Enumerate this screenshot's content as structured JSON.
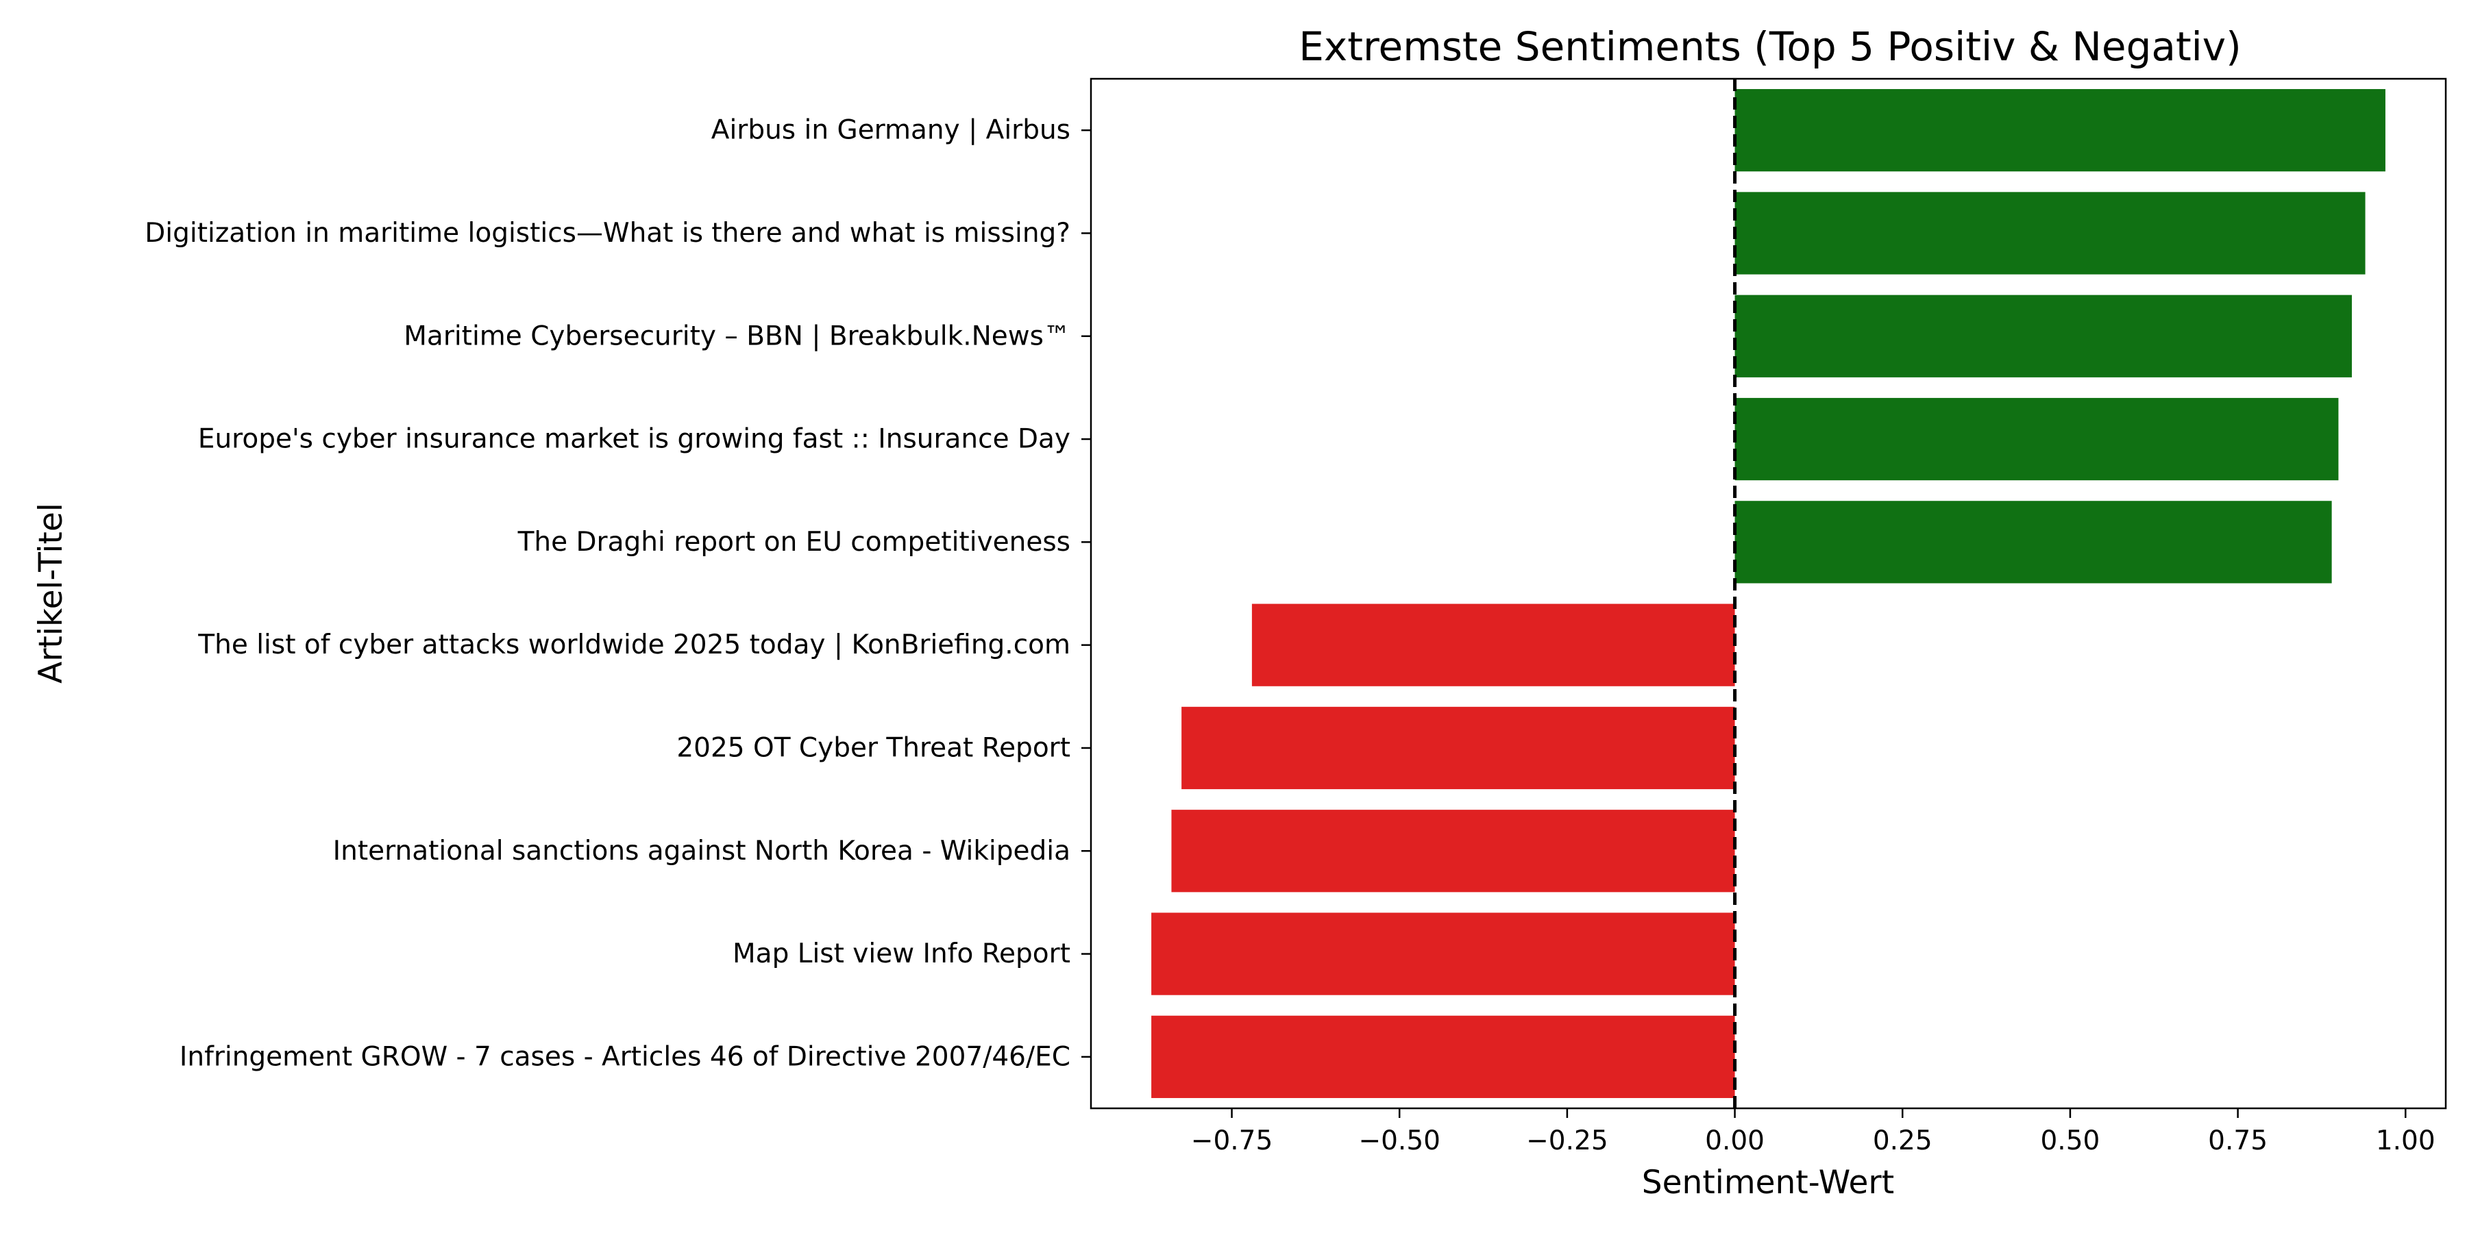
{
  "chart_data": {
    "type": "bar",
    "orientation": "horizontal",
    "title": "Extremste Sentiments (Top 5 Positiv & Negativ)",
    "xlabel": "Sentiment-Wert",
    "ylabel": "Artikel-Titel",
    "xlim": [
      -0.96,
      1.06
    ],
    "xticks": [
      -0.75,
      -0.5,
      -0.25,
      0.0,
      0.25,
      0.5,
      0.75,
      1.0
    ],
    "xtick_labels": [
      "−0.75",
      "−0.50",
      "−0.25",
      "0.00",
      "0.25",
      "0.50",
      "0.75",
      "1.00"
    ],
    "reference_line": {
      "x": 0,
      "style": "dashed",
      "color": "#000000"
    },
    "grid": false,
    "legend": "none",
    "colors": {
      "positive": "#107113",
      "negative": "#e02122"
    },
    "categories": [
      "Airbus in Germany | Airbus",
      "Digitization in maritime logistics—What is there and what is missing?",
      "Maritime Cybersecurity – BBN | Breakbulk.News™",
      "Europe's cyber insurance market is growing fast :: Insurance Day",
      "The Draghi report on EU competitiveness",
      "The list of cyber attacks worldwide 2025 today | KonBriefing.com",
      "2025 OT Cyber Threat Report",
      "International sanctions against North Korea - Wikipedia",
      "Map List view Info Report",
      "Infringement GROW - 7 cases - Articles 46 of Directive 2007/46/EC"
    ],
    "values": [
      0.97,
      0.94,
      0.92,
      0.9,
      0.89,
      -0.72,
      -0.825,
      -0.84,
      -0.87,
      -0.87
    ]
  }
}
